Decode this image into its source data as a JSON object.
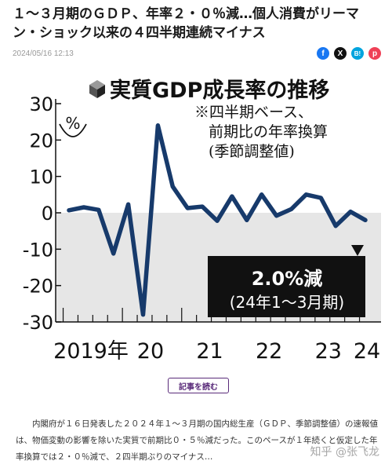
{
  "article": {
    "headline": "１～３月期のＧＤＰ、年率２・０％減…個人消費がリーマン・ショック以来の４四半期連続マイナス",
    "date": "2024/05/16 12:13",
    "share": {
      "facebook": "f",
      "x": "X",
      "hatena": "B!",
      "pocket": "p"
    },
    "read_more": "記事を読む",
    "body": "内閣府が１６日発表した２０２４年１～３月期の国内総生産（ＧＤＰ、季節調整値）の速報値は、物価変動の影響を除いた実質で前期比０・５％減だった。このペースが１年続くと仮定した年率換算では２・０％減で、２四半期ぶりのマイナス…",
    "watermark": "知乎 @张飞龙"
  },
  "colors": {
    "line": "#173a6b",
    "negative_area": "#e6e6e6",
    "callout_bg": "#111111",
    "callout_text": "#ffffff",
    "read_more": "#5a2b7a"
  },
  "chart_data": {
    "type": "line",
    "title": "実質GDP成長率の推移",
    "note": [
      "※四半期ベース、",
      "前期比の年率換算",
      "(季節調整値)"
    ],
    "unit": "%",
    "x": [
      "2019Q1",
      "2019Q2",
      "2019Q3",
      "2019Q4",
      "2020Q1",
      "2020Q2",
      "2020Q3",
      "2020Q4",
      "2021Q1",
      "2021Q2",
      "2021Q3",
      "2021Q4",
      "2022Q1",
      "2022Q2",
      "2022Q3",
      "2022Q4",
      "2023Q1",
      "2023Q2",
      "2023Q3",
      "2023Q4",
      "2024Q1"
    ],
    "series": [
      {
        "values": [
          0.7,
          1.5,
          0.8,
          -11.2,
          2.3,
          -28.0,
          24.0,
          7.2,
          1.3,
          1.7,
          -2.2,
          4.5,
          -2.0,
          5.0,
          -0.8,
          1.0,
          5.0,
          4.1,
          -3.6,
          0.3,
          -2.0
        ]
      }
    ],
    "ylim": [
      -30,
      30
    ],
    "yticks": [
      "30",
      "20",
      "10",
      "0",
      "-10",
      "-20",
      "-30"
    ],
    "year_labels": [
      "2019年",
      "20",
      "21",
      "22",
      "23",
      "24"
    ],
    "callout": {
      "value": "2.0%減",
      "period": "(24年1～3月期)"
    },
    "grid": false,
    "legend": "none"
  }
}
